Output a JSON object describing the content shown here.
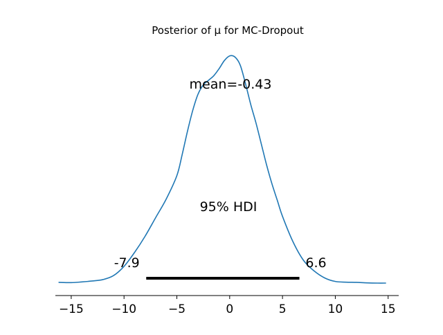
{
  "chart_data": {
    "type": "line",
    "title": "Posterior of μ for MC-Dropout",
    "xlabel": "",
    "ylabel": "",
    "xlim": [
      -16.5,
      16.0
    ],
    "ylim": [
      0,
      1.0
    ],
    "x_ticks": [
      -15,
      -10,
      -5,
      0,
      5,
      10,
      15
    ],
    "x_tick_labels": [
      "−15",
      "−10",
      "−5",
      "0",
      "5",
      "10",
      "15"
    ],
    "y_axis_visible": false,
    "grid": false,
    "series": [
      {
        "color": "#1f77b4",
        "x": [
          -16.2,
          -15.0,
          -14.0,
          -13.0,
          -12.0,
          -11.0,
          -10.0,
          -9.0,
          -8.0,
          -7.0,
          -6.0,
          -5.0,
          -4.5,
          -4.0,
          -3.5,
          -3.0,
          -2.5,
          -2.0,
          -1.5,
          -1.0,
          -0.5,
          0.0,
          0.5,
          1.0,
          1.5,
          2.0,
          2.5,
          3.0,
          3.5,
          4.0,
          4.5,
          5.0,
          6.0,
          7.0,
          8.0,
          9.0,
          10.0,
          11.0,
          12.0,
          13.0,
          14.0,
          14.8
        ],
        "y": [
          0.006,
          0.005,
          0.008,
          0.012,
          0.018,
          0.035,
          0.075,
          0.135,
          0.205,
          0.285,
          0.365,
          0.465,
          0.555,
          0.655,
          0.745,
          0.815,
          0.855,
          0.875,
          0.895,
          0.925,
          0.96,
          0.98,
          0.975,
          0.94,
          0.86,
          0.77,
          0.69,
          0.6,
          0.51,
          0.43,
          0.36,
          0.29,
          0.18,
          0.1,
          0.055,
          0.025,
          0.01,
          0.007,
          0.006,
          0.004,
          0.003,
          0.003
        ]
      }
    ],
    "annotations": {
      "mean": "mean=-0.43",
      "hdi_label": "95% HDI",
      "hdi_low_label": "-7.9",
      "hdi_high_label": "6.6",
      "hdi_interval": [
        -7.9,
        6.6
      ]
    }
  }
}
